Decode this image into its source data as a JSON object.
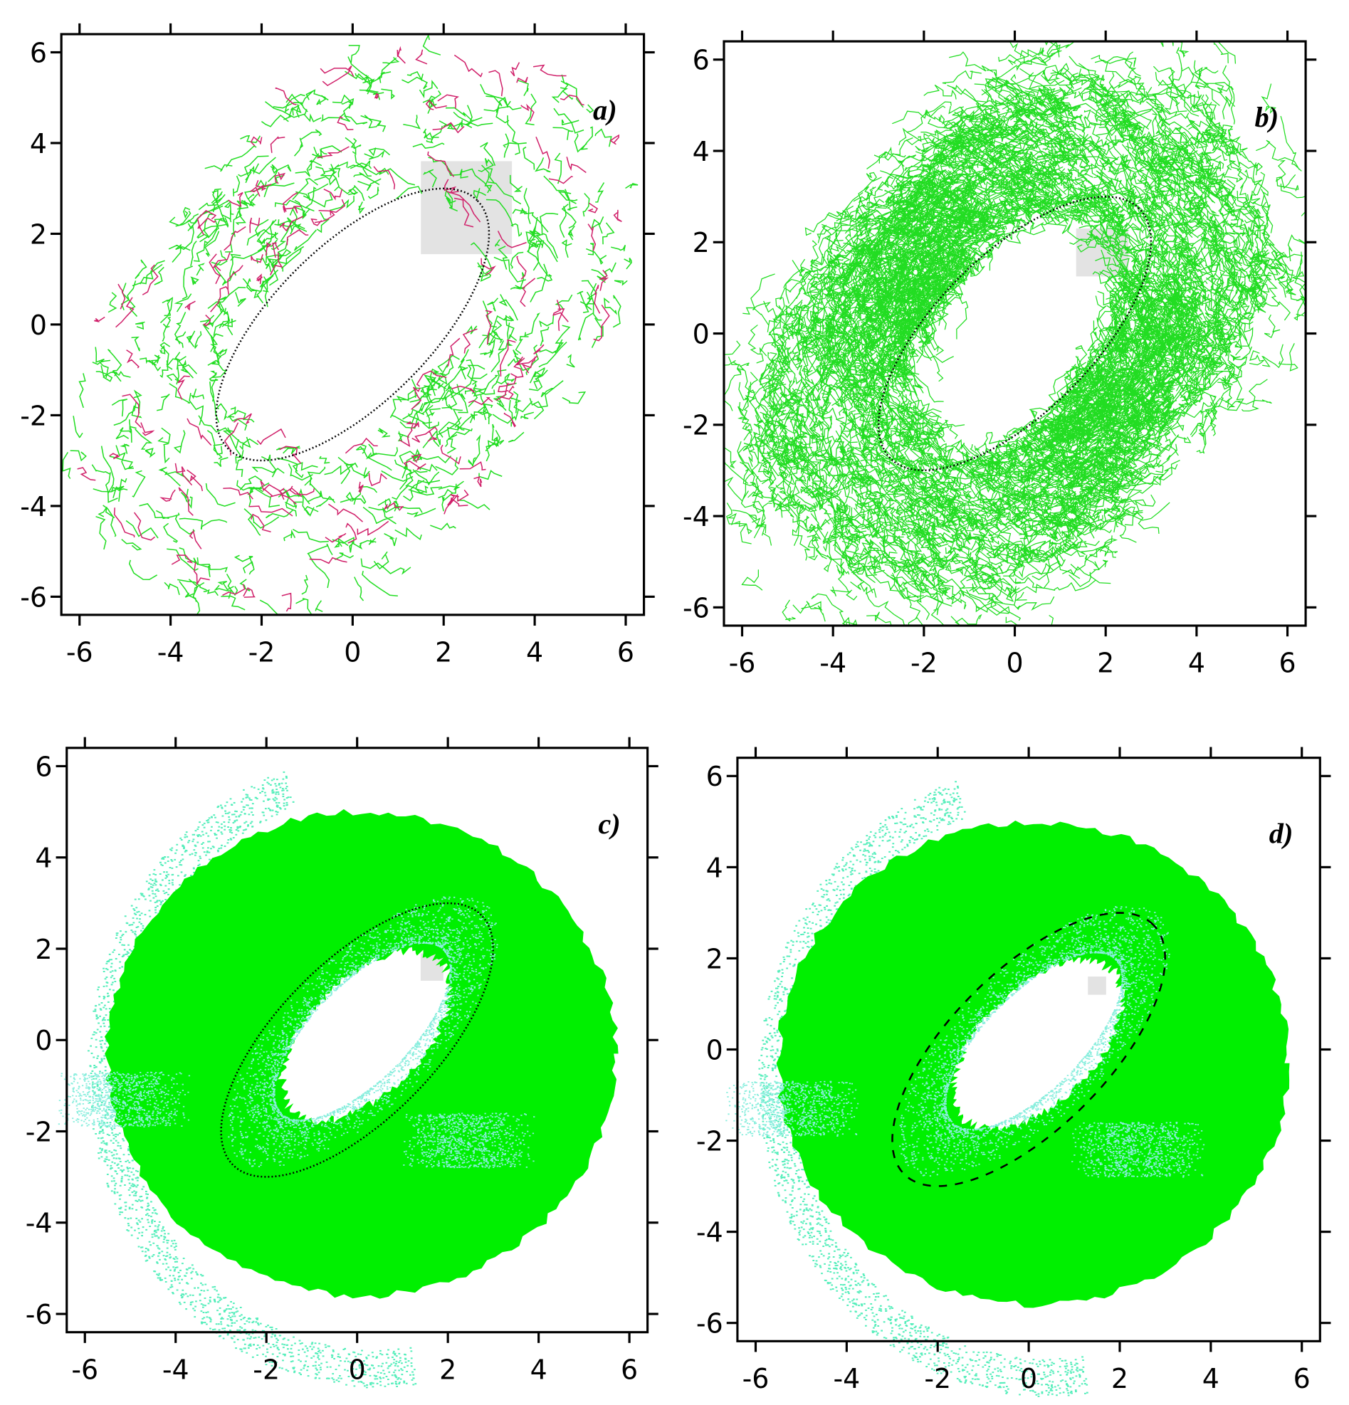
{
  "chart_data": [
    {
      "type": "scatter",
      "panel_label": "a)",
      "xlim": [
        -6.4,
        6.4
      ],
      "ylim": [
        -6.4,
        6.4
      ],
      "xticks": [
        -6,
        -4,
        -2,
        0,
        2,
        4,
        6
      ],
      "yticks": [
        -6,
        -4,
        -2,
        0,
        2,
        4,
        6
      ],
      "ellipse": {
        "cx": 0,
        "cy": 0,
        "semi_major": 3.87,
        "semi_minor": 1.73,
        "angle": 45,
        "style": "dotted"
      },
      "region": {
        "x": [
          1.5,
          3.5
        ],
        "y": [
          1.55,
          3.6
        ]
      }
    },
    {
      "type": "scatter",
      "panel_label": "b)",
      "xlim": [
        -6.4,
        6.4
      ],
      "ylim": [
        -6.4,
        6.4
      ],
      "xticks": [
        -6,
        -4,
        -2,
        0,
        2,
        4,
        6
      ],
      "yticks": [
        -6,
        -4,
        -2,
        0,
        2,
        4,
        6
      ],
      "ellipse": {
        "cx": 0,
        "cy": 0,
        "semi_major": 3.87,
        "semi_minor": 1.73,
        "angle": 45,
        "style": "dotted"
      },
      "region": {
        "x": [
          1.35,
          2.5
        ],
        "y": [
          1.25,
          2.3
        ]
      }
    },
    {
      "type": "scatter",
      "panel_label": "c)",
      "xlim": [
        -6.4,
        6.4
      ],
      "ylim": [
        -6.4,
        6.4
      ],
      "xticks": [
        -6,
        -4,
        -2,
        0,
        2,
        4,
        6
      ],
      "yticks": [
        -6,
        -4,
        -2,
        0,
        2,
        4,
        6
      ],
      "ellipse": {
        "cx": 0,
        "cy": 0,
        "semi_major": 3.87,
        "semi_minor": 1.73,
        "angle": 45,
        "style": "dotted"
      },
      "region": {
        "x": [
          1.4,
          1.9
        ],
        "y": [
          1.3,
          1.9
        ]
      }
    },
    {
      "type": "scatter",
      "panel_label": "d)",
      "xlim": [
        -6.4,
        6.4
      ],
      "ylim": [
        -6.4,
        6.4
      ],
      "xticks": [
        -6,
        -4,
        -2,
        0,
        2,
        4,
        6
      ],
      "yticks": [
        -6,
        -4,
        -2,
        0,
        2,
        4,
        6
      ],
      "ellipse": {
        "cx": 0,
        "cy": 0,
        "semi_major": 3.87,
        "semi_minor": 1.73,
        "angle": 45,
        "style": "dashed"
      },
      "region": {
        "x": [
          1.3,
          1.7
        ],
        "y": [
          1.2,
          1.6
        ]
      }
    }
  ]
}
